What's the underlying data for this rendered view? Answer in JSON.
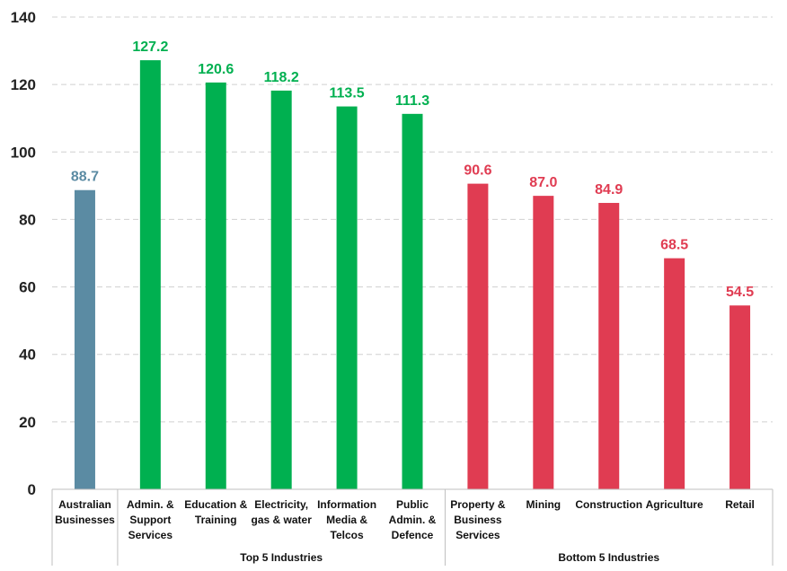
{
  "chart_data": {
    "type": "bar",
    "title": "",
    "xlabel": "",
    "ylabel": "",
    "ylim": [
      0,
      140
    ],
    "yticks": [
      "0",
      "20",
      "40",
      "60",
      "80",
      "100",
      "120",
      "140"
    ],
    "grid": true,
    "categories": [
      [
        "Australian",
        "Businesses"
      ],
      [
        "Admin. &",
        "Support",
        "Services"
      ],
      [
        "Education &",
        "Training"
      ],
      [
        "Electricity,",
        "gas & water"
      ],
      [
        "Information",
        "Media &",
        "Telcos"
      ],
      [
        "Public",
        "Admin. &",
        "Defence"
      ],
      [
        "Property &",
        "Business",
        "Services"
      ],
      [
        "Mining"
      ],
      [
        "Construction"
      ],
      [
        "Agriculture"
      ],
      [
        "Retail"
      ]
    ],
    "values": [
      88.7,
      127.2,
      120.6,
      118.2,
      113.5,
      111.3,
      90.6,
      87.0,
      84.9,
      68.5,
      54.5
    ],
    "value_labels": [
      "88.7",
      "127.2",
      "120.6",
      "118.2",
      "113.5",
      "111.3",
      "90.6",
      "87.0",
      "84.9",
      "68.5",
      "54.5"
    ],
    "colors": [
      "#5b8ba3",
      "#00b050",
      "#00b050",
      "#00b050",
      "#00b050",
      "#00b050",
      "#e03c52",
      "#e03c52",
      "#e03c52",
      "#e03c52",
      "#e03c52"
    ],
    "groups": [
      {
        "label": "",
        "start": 0,
        "end": 0
      },
      {
        "label": "Top 5 Industries",
        "start": 1,
        "end": 5
      },
      {
        "label": "Bottom 5 Industries",
        "start": 6,
        "end": 10
      }
    ]
  }
}
